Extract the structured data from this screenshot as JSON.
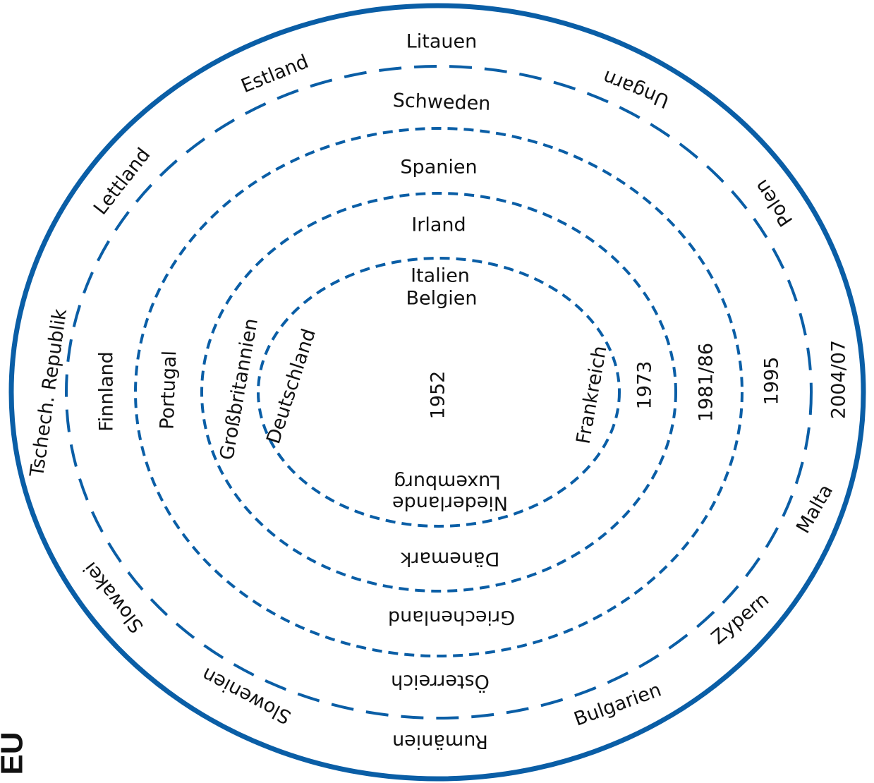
{
  "colors": {
    "ring": "#0a5ea6",
    "text": "#111111",
    "background": "#ffffff"
  },
  "corner_label": "EU",
  "rings": [
    {
      "id": "1952",
      "year": "1952",
      "countries": [
        "Italien",
        "Belgien",
        "Deutschland",
        "Frankreich",
        "Niederlande",
        "Luxemburg"
      ]
    },
    {
      "id": "1973",
      "year": "1973",
      "countries": [
        "Irland",
        "Großbritannien",
        "Dänemark"
      ]
    },
    {
      "id": "1981-86",
      "year": "1981/86",
      "countries": [
        "Spanien",
        "Portugal",
        "Griechenland"
      ]
    },
    {
      "id": "1995",
      "year": "1995",
      "countries": [
        "Schweden",
        "Finnland",
        "Österreich"
      ]
    },
    {
      "id": "2004-07",
      "year": "2004/07",
      "countries": [
        "Litauen",
        "Ungarn",
        "Polen",
        "Malta",
        "Zypern",
        "Bulgarien",
        "Rumänien",
        "Slowenien",
        "Slowakei",
        "Tschech. Republik",
        "Lettland",
        "Estland"
      ]
    }
  ]
}
